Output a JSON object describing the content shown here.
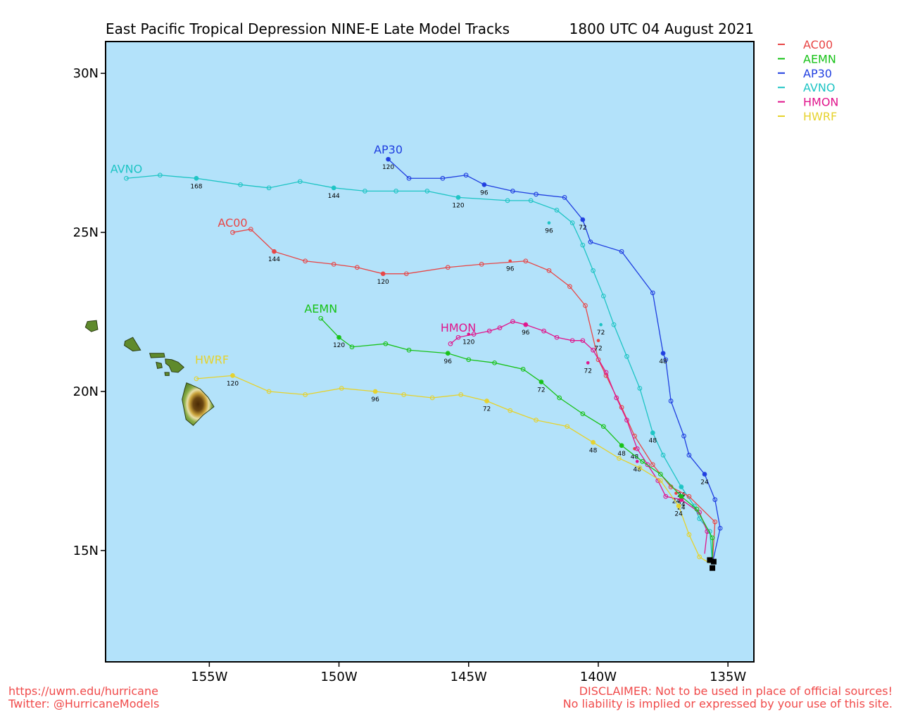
{
  "header": {
    "title": "East Pacific Tropical Depression NINE-E Late Model Tracks",
    "datetime": "1800 UTC 04 August 2021"
  },
  "axes": {
    "lon_range": [
      -159.0,
      -134.0
    ],
    "lat_range": [
      11.5,
      31.0
    ],
    "x_ticks": [
      {
        "lon": -155,
        "label": "155W"
      },
      {
        "lon": -150,
        "label": "150W"
      },
      {
        "lon": -145,
        "label": "145W"
      },
      {
        "lon": -140,
        "label": "140W"
      },
      {
        "lon": -135,
        "label": "135W"
      }
    ],
    "y_ticks": [
      {
        "lat": 30,
        "label": "30N"
      },
      {
        "lat": 25,
        "label": "25N"
      },
      {
        "lat": 20,
        "label": "20N"
      },
      {
        "lat": 15,
        "label": "15N"
      }
    ]
  },
  "colors": {
    "ocean": "#b3e2fa",
    "frame": "#000000",
    "land_fill": "#5f8a2c",
    "land_edge": "#2e3f16",
    "highland": "#6b4712",
    "initial_marker": "#000000"
  },
  "legend": [
    {
      "name": "AC00",
      "color": "#e84545"
    },
    {
      "name": "AEMN",
      "color": "#17c217"
    },
    {
      "name": "AP30",
      "color": "#1f3ee0"
    },
    {
      "name": "AVNO",
      "color": "#1dc4c4"
    },
    {
      "name": "HMON",
      "color": "#e0148c"
    },
    {
      "name": "HWRF",
      "color": "#e6d22c"
    }
  ],
  "tracks": [
    {
      "name": "AP30",
      "color": "#1f3ee0",
      "points": [
        [
          -135.6,
          14.6
        ],
        [
          -135.3,
          15.7
        ],
        [
          -135.5,
          16.6
        ],
        [
          -135.9,
          17.4
        ],
        [
          -136.5,
          18.0
        ],
        [
          -136.7,
          18.6
        ],
        [
          -137.2,
          19.7
        ],
        [
          -137.4,
          21.0
        ],
        [
          -137.5,
          21.2
        ],
        [
          -137.9,
          23.1
        ],
        [
          -139.1,
          24.4
        ],
        [
          -140.3,
          24.7
        ],
        [
          -140.6,
          25.4
        ],
        [
          -141.3,
          26.1
        ],
        [
          -142.4,
          26.2
        ],
        [
          -143.3,
          26.3
        ],
        [
          -144.4,
          26.5
        ],
        [
          -145.1,
          26.8
        ],
        [
          -146.0,
          26.7
        ],
        [
          -147.3,
          26.7
        ],
        [
          -148.1,
          27.3
        ]
      ],
      "hour_labels": [
        {
          "h": "24",
          "lon": -135.9,
          "lat": 17.4
        },
        {
          "h": "48",
          "lon": -137.5,
          "lat": 21.2
        },
        {
          "h": "72",
          "lon": -140.6,
          "lat": 25.4
        },
        {
          "h": "96",
          "lon": -144.4,
          "lat": 26.5
        },
        {
          "h": "120",
          "lon": -148.1,
          "lat": 27.3
        }
      ],
      "label_at": {
        "lon": -148.1,
        "lat": 27.3
      }
    },
    {
      "name": "AVNO",
      "color": "#1dc4c4",
      "points": [
        [
          -135.6,
          14.6
        ],
        [
          -135.7,
          15.6
        ],
        [
          -136.1,
          16.0
        ],
        [
          -136.3,
          16.4
        ],
        [
          -136.8,
          17.0
        ],
        [
          -137.5,
          18.0
        ],
        [
          -137.9,
          18.7
        ],
        [
          -138.4,
          20.1
        ],
        [
          -138.9,
          21.1
        ],
        [
          -139.4,
          22.1
        ],
        [
          -139.8,
          23.0
        ],
        [
          -140.2,
          23.8
        ],
        [
          -140.6,
          24.6
        ],
        [
          -141.0,
          25.3
        ],
        [
          -141.6,
          25.7
        ],
        [
          -142.6,
          26.0
        ],
        [
          -143.5,
          26.0
        ],
        [
          -145.4,
          26.1
        ],
        [
          -146.6,
          26.3
        ],
        [
          -147.8,
          26.3
        ],
        [
          -149.0,
          26.3
        ],
        [
          -150.2,
          26.4
        ],
        [
          -151.5,
          26.6
        ],
        [
          -152.7,
          26.4
        ],
        [
          -153.8,
          26.5
        ],
        [
          -155.5,
          26.7
        ],
        [
          -156.9,
          26.8
        ],
        [
          -158.2,
          26.7
        ]
      ],
      "hour_labels": [
        {
          "h": "24",
          "lon": -136.8,
          "lat": 17.0
        },
        {
          "h": "48",
          "lon": -137.9,
          "lat": 18.7
        },
        {
          "h": "72",
          "lon": -139.9,
          "lat": 22.1
        },
        {
          "h": "96",
          "lon": -141.9,
          "lat": 25.3
        },
        {
          "h": "120",
          "lon": -145.4,
          "lat": 26.1
        },
        {
          "h": "144",
          "lon": -150.2,
          "lat": 26.4
        },
        {
          "h": "168",
          "lon": -155.5,
          "lat": 26.7
        }
      ],
      "label_at": {
        "lon": -158.2,
        "lat": 26.7
      }
    },
    {
      "name": "AC00",
      "color": "#e84545",
      "points": [
        [
          -135.6,
          14.6
        ],
        [
          -135.5,
          15.9
        ],
        [
          -136.5,
          16.7
        ],
        [
          -137.2,
          17.0
        ],
        [
          -137.9,
          17.7
        ],
        [
          -138.6,
          18.6
        ],
        [
          -139.1,
          19.5
        ],
        [
          -139.7,
          20.5
        ],
        [
          -140.0,
          21.0
        ],
        [
          -140.5,
          22.7
        ],
        [
          -141.1,
          23.3
        ],
        [
          -141.9,
          23.8
        ],
        [
          -142.8,
          24.1
        ],
        [
          -144.5,
          24.0
        ],
        [
          -145.8,
          23.9
        ],
        [
          -147.4,
          23.7
        ],
        [
          -148.3,
          23.7
        ],
        [
          -149.3,
          23.9
        ],
        [
          -150.2,
          24.0
        ],
        [
          -151.3,
          24.1
        ],
        [
          -152.5,
          24.4
        ],
        [
          -153.4,
          25.1
        ],
        [
          -154.1,
          25.0
        ]
      ],
      "hour_labels": [
        {
          "h": "24",
          "lon": -137.0,
          "lat": 16.8
        },
        {
          "h": "48",
          "lon": -138.6,
          "lat": 18.2
        },
        {
          "h": "72",
          "lon": -140.0,
          "lat": 21.6
        },
        {
          "h": "96",
          "lon": -143.4,
          "lat": 24.1
        },
        {
          "h": "120",
          "lon": -148.3,
          "lat": 23.7
        },
        {
          "h": "144",
          "lon": -152.5,
          "lat": 24.4
        }
      ],
      "label_at": {
        "lon": -154.1,
        "lat": 25.0
      }
    },
    {
      "name": "HMON",
      "color": "#e0148c",
      "points": [
        [
          -135.9,
          14.9
        ],
        [
          -135.8,
          15.6
        ],
        [
          -136.1,
          16.2
        ],
        [
          -136.8,
          16.6
        ],
        [
          -137.4,
          16.7
        ],
        [
          -137.7,
          17.2
        ],
        [
          -138.1,
          17.7
        ],
        [
          -138.5,
          18.2
        ],
        [
          -138.9,
          19.1
        ],
        [
          -139.3,
          19.8
        ],
        [
          -139.7,
          20.6
        ],
        [
          -140.2,
          21.3
        ],
        [
          -140.6,
          21.6
        ],
        [
          -141.0,
          21.6
        ],
        [
          -141.6,
          21.7
        ],
        [
          -142.1,
          21.9
        ],
        [
          -142.8,
          22.1
        ],
        [
          -143.3,
          22.2
        ],
        [
          -143.8,
          22.0
        ],
        [
          -144.2,
          21.9
        ],
        [
          -144.8,
          21.8
        ],
        [
          -145.4,
          21.7
        ],
        [
          -145.7,
          21.5
        ]
      ],
      "hour_labels": [
        {
          "h": "24",
          "lon": -136.8,
          "lat": 16.6
        },
        {
          "h": "48",
          "lon": -138.5,
          "lat": 17.8
        },
        {
          "h": "72",
          "lon": -140.4,
          "lat": 20.9
        },
        {
          "h": "96",
          "lon": -142.8,
          "lat": 22.1
        },
        {
          "h": "120",
          "lon": -145.0,
          "lat": 21.8
        }
      ],
      "label_at": {
        "lon": -145.4,
        "lat": 21.7
      }
    },
    {
      "name": "AEMN",
      "color": "#17c217",
      "points": [
        [
          -135.6,
          14.6
        ],
        [
          -135.6,
          15.4
        ],
        [
          -136.2,
          16.3
        ],
        [
          -136.8,
          16.7
        ],
        [
          -137.6,
          17.4
        ],
        [
          -138.3,
          17.8
        ],
        [
          -139.1,
          18.3
        ],
        [
          -139.8,
          18.9
        ],
        [
          -140.6,
          19.3
        ],
        [
          -141.5,
          19.8
        ],
        [
          -142.2,
          20.3
        ],
        [
          -142.9,
          20.7
        ],
        [
          -144.0,
          20.9
        ],
        [
          -145.0,
          21.0
        ],
        [
          -145.8,
          21.2
        ],
        [
          -147.3,
          21.3
        ],
        [
          -148.2,
          21.5
        ],
        [
          -149.5,
          21.4
        ],
        [
          -150.0,
          21.7
        ],
        [
          -150.7,
          22.3
        ]
      ],
      "hour_labels": [
        {
          "h": "24",
          "lon": -136.8,
          "lat": 16.7
        },
        {
          "h": "48",
          "lon": -139.1,
          "lat": 18.3
        },
        {
          "h": "72",
          "lon": -142.2,
          "lat": 20.3
        },
        {
          "h": "96",
          "lon": -145.8,
          "lat": 21.2
        },
        {
          "h": "120",
          "lon": -150.0,
          "lat": 21.7
        }
      ],
      "label_at": {
        "lon": -150.7,
        "lat": 22.3
      }
    },
    {
      "name": "HWRF",
      "color": "#e6d22c",
      "points": [
        [
          -135.7,
          14.6
        ],
        [
          -136.1,
          14.8
        ],
        [
          -136.5,
          15.5
        ],
        [
          -136.9,
          16.4
        ],
        [
          -137.6,
          17.2
        ],
        [
          -138.4,
          17.6
        ],
        [
          -139.2,
          17.9
        ],
        [
          -140.2,
          18.4
        ],
        [
          -141.2,
          18.9
        ],
        [
          -142.4,
          19.1
        ],
        [
          -143.4,
          19.4
        ],
        [
          -144.3,
          19.7
        ],
        [
          -145.3,
          19.9
        ],
        [
          -146.4,
          19.8
        ],
        [
          -147.5,
          19.9
        ],
        [
          -148.6,
          20.0
        ],
        [
          -149.9,
          20.1
        ],
        [
          -151.3,
          19.9
        ],
        [
          -152.7,
          20.0
        ],
        [
          -154.1,
          20.5
        ],
        [
          -155.5,
          20.4
        ]
      ],
      "hour_labels": [
        {
          "h": "24",
          "lon": -136.9,
          "lat": 16.4
        },
        {
          "h": "48",
          "lon": -140.2,
          "lat": 18.4
        },
        {
          "h": "72",
          "lon": -144.3,
          "lat": 19.7
        },
        {
          "h": "96",
          "lon": -148.6,
          "lat": 20.0
        },
        {
          "h": "120",
          "lon": -154.1,
          "lat": 20.5
        }
      ],
      "label_at": {
        "lon": -154.9,
        "lat": 20.7
      }
    }
  ],
  "footer": {
    "left_line1": "https://uwm.edu/hurricane",
    "left_line2": "Twitter: @HurricaneModels",
    "right_line1": "DISCLAIMER: Not to be used in place of official sources!",
    "right_line2": "No liability is implied or expressed by your use of this site."
  }
}
